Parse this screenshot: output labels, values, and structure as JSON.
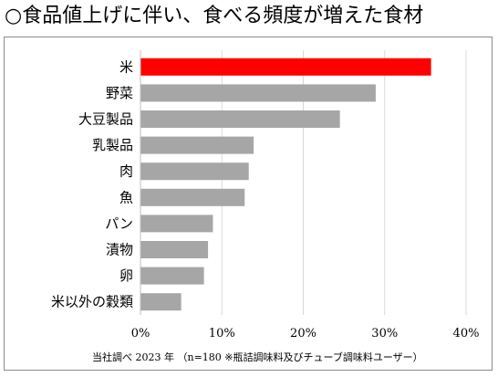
{
  "title": "○食品値上げに伴い、食べる頻度が増えた食材",
  "chart_data": {
    "type": "bar",
    "orientation": "horizontal",
    "categories": [
      "米",
      "野菜",
      "大豆製品",
      "乳製品",
      "肉",
      "魚",
      "パン",
      "漬物",
      "卵",
      "米以外の穀類"
    ],
    "values": [
      35.7,
      28.9,
      24.5,
      13.9,
      13.3,
      12.8,
      8.9,
      8.3,
      7.8,
      5.0
    ],
    "xlim": [
      0,
      40
    ],
    "xticks": [
      0,
      10,
      20,
      30,
      40
    ],
    "tick_format": "%",
    "grid": true,
    "highlight_color": "#ff0000",
    "bar_color": "#a6a6a6",
    "note": "当社調べ 2023 年 （n=180 ※瓶詰調味料及びチューブ調味料ユーザー）"
  }
}
